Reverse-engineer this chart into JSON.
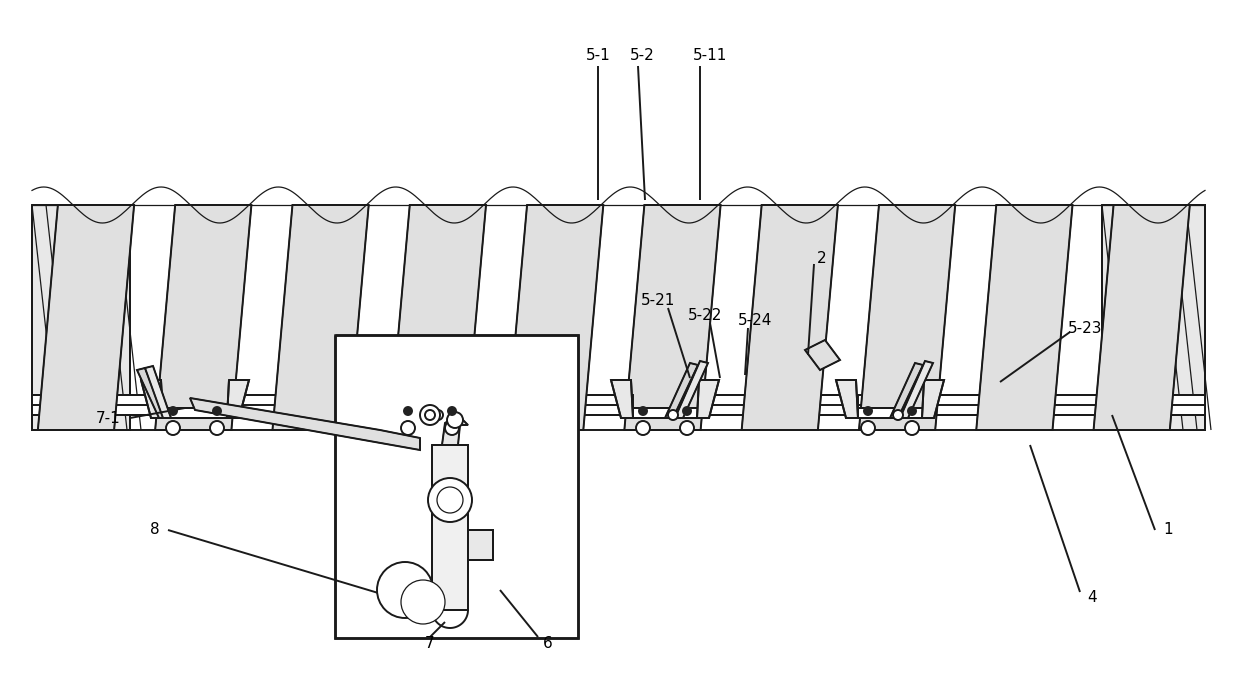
{
  "bg_color": "#ffffff",
  "line_color": "#1a1a1a",
  "lw": 1.4,
  "lw_thin": 0.9,
  "lw_thick": 1.8,
  "fig_width": 12.4,
  "fig_height": 6.88,
  "dpi": 100
}
